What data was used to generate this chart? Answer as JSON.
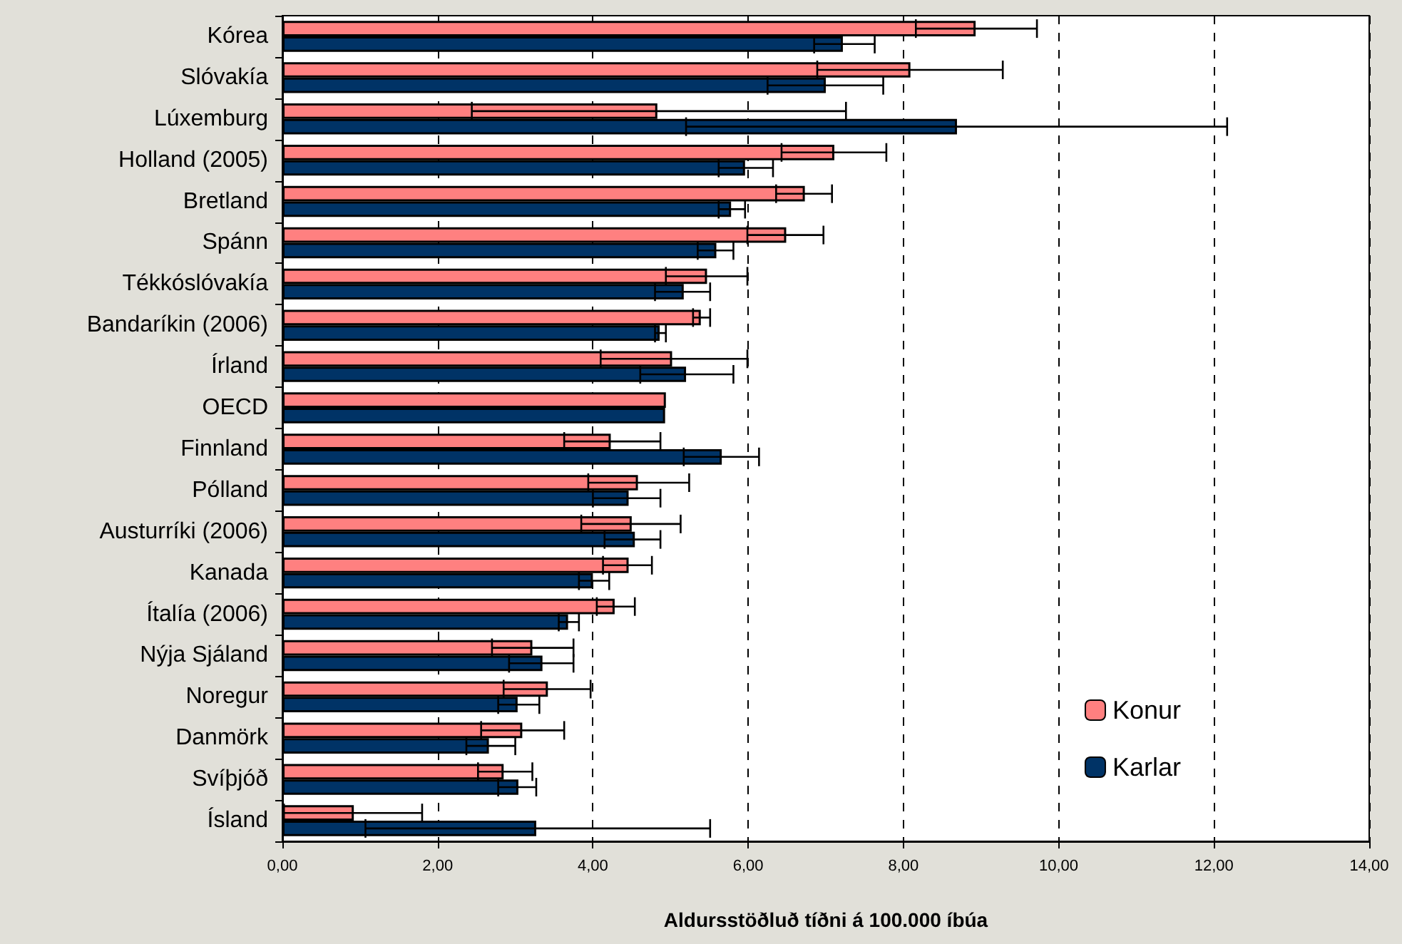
{
  "chart_data": {
    "type": "bar",
    "orientation": "horizontal",
    "xlabel": "Aldursstöðluð tíðni á 100.000 íbúa",
    "categories": [
      "Kórea",
      "Slóvakía",
      "Lúxemburg",
      "Holland (2005)",
      "Bretland",
      "Spánn",
      "Tékkóslóvakía",
      "Bandaríkin (2006)",
      "Írland",
      "OECD",
      "Finnland",
      "Pólland",
      "Austurríki (2006)",
      "Kanada",
      "Ítalía (2006)",
      "Nýja Sjáland",
      "Noregur",
      "Danmörk",
      "Svíþjóð",
      "Ísland"
    ],
    "series": [
      {
        "name": "Konur",
        "color": "#ff8080",
        "values": [
          8.93,
          8.09,
          4.83,
          7.11,
          6.73,
          6.49,
          5.47,
          5.39,
          5.02,
          4.94,
          4.23,
          4.58,
          4.5,
          4.46,
          4.28,
          3.22,
          3.42,
          3.09,
          2.85,
          0.92
        ],
        "errors": [
          [
            8.16,
            9.72
          ],
          [
            6.89,
            9.28
          ],
          [
            2.44,
            7.26
          ],
          [
            6.43,
            7.78
          ],
          [
            6.36,
            7.08
          ],
          [
            5.99,
            6.97
          ],
          [
            4.94,
            5.99
          ],
          [
            5.29,
            5.51
          ],
          [
            4.1,
            5.99
          ],
          null,
          [
            3.63,
            4.87
          ],
          [
            3.94,
            5.24
          ],
          [
            3.85,
            5.13
          ],
          [
            4.13,
            4.76
          ],
          [
            4.05,
            4.54
          ],
          [
            2.7,
            3.75
          ],
          [
            2.85,
            3.97
          ],
          [
            2.56,
            3.63
          ],
          [
            2.52,
            3.22
          ],
          [
            0.02,
            1.8
          ]
        ]
      },
      {
        "name": "Karlar",
        "color": "#003366",
        "values": [
          7.22,
          7.0,
          8.69,
          5.96,
          5.78,
          5.59,
          5.17,
          4.86,
          5.2,
          4.93,
          5.66,
          4.46,
          4.54,
          4.0,
          3.68,
          3.35,
          3.03,
          2.66,
          3.04,
          3.27
        ],
        "errors": [
          [
            6.85,
            7.63
          ],
          [
            6.25,
            7.74
          ],
          [
            5.2,
            12.17
          ],
          [
            5.62,
            6.32
          ],
          [
            5.62,
            5.96
          ],
          [
            5.35,
            5.81
          ],
          [
            4.8,
            5.51
          ],
          [
            4.8,
            4.94
          ],
          [
            4.61,
            5.81
          ],
          null,
          [
            5.17,
            6.14
          ],
          [
            4.0,
            4.87
          ],
          [
            4.15,
            4.87
          ],
          [
            3.82,
            4.21
          ],
          [
            3.56,
            3.82
          ],
          [
            2.92,
            3.75
          ],
          [
            2.78,
            3.31
          ],
          [
            2.37,
            3.0
          ],
          [
            2.78,
            3.27
          ],
          [
            1.07,
            5.51
          ]
        ]
      }
    ],
    "xlim": [
      0,
      14
    ],
    "xticks": [
      {
        "value": 0,
        "label": "0,00"
      },
      {
        "value": 2,
        "label": "2,00"
      },
      {
        "value": 4,
        "label": "4,00"
      },
      {
        "value": 6,
        "label": "6,00"
      },
      {
        "value": 8,
        "label": "8,00"
      },
      {
        "value": 10,
        "label": "10,00"
      },
      {
        "value": 12,
        "label": "12,00"
      },
      {
        "value": 14,
        "label": "14,00"
      }
    ],
    "grid": "x",
    "legend": "bottom right"
  }
}
